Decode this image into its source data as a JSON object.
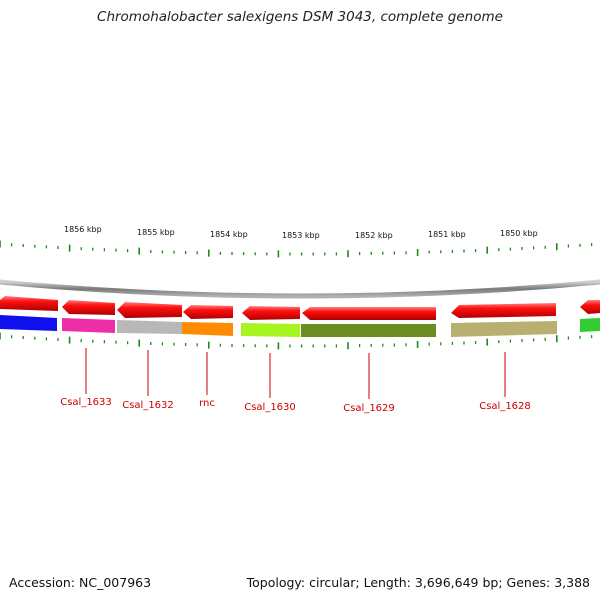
{
  "title": "Chromohalobacter salexigens DSM 3043, complete genome",
  "footer": {
    "accession": "Accession: NC_007963",
    "stats": "Topology: circular; Length: 3,696,649 bp; Genes: 3,388"
  },
  "scale_labels": [
    "1856 kbp",
    "1855 kbp",
    "1854 kbp",
    "1853 kbp",
    "1852 kbp",
    "1851 kbp",
    "1850 kbp"
  ],
  "gene_labels": [
    "Csal_1633",
    "Csal_1632",
    "rnc",
    "Csal_1630",
    "Csal_1629",
    "Csal_1628"
  ],
  "colors": {
    "forward_arrow": "#ee0000",
    "backbone": "#808080",
    "tick": "#1a8c1a",
    "label_text": "#cc0000",
    "feature_colors": [
      "#1010ee",
      "#ee2ea8",
      "#b8b8b8",
      "#ff8c00",
      "#a6f51e",
      "#6b8e23",
      "#b8b070",
      "#33cc33"
    ]
  }
}
